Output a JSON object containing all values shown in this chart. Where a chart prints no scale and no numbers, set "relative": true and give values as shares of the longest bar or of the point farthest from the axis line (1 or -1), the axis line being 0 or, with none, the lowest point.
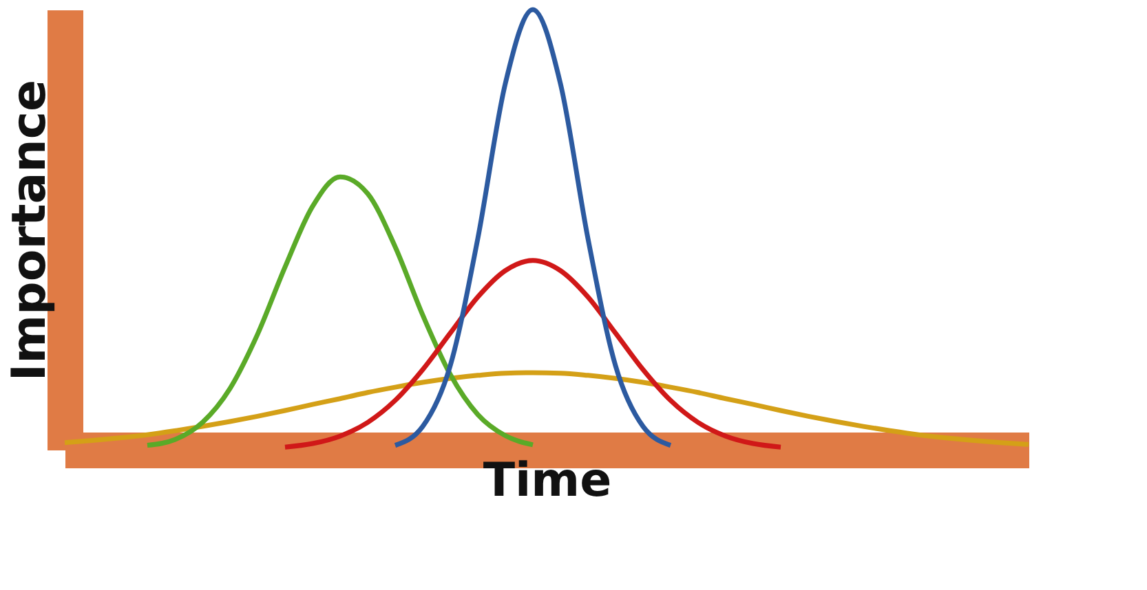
{
  "chart_data": {
    "type": "line",
    "xlabel": "Time",
    "ylabel": "Importance",
    "relative": true,
    "tick_labels": false,
    "categories": [
      null,
      null,
      null,
      null,
      null,
      null,
      null,
      null,
      null,
      null,
      null,
      null,
      null,
      null,
      null,
      null,
      null,
      null,
      null,
      null,
      null,
      null,
      null,
      null,
      null,
      null,
      null,
      null,
      null,
      null,
      null,
      null,
      null,
      null,
      null,
      null
    ],
    "series": [
      {
        "color": "#d4a017",
        "values": [
          0.016,
          0.021,
          0.027,
          0.034,
          0.043,
          0.053,
          0.064,
          0.076,
          0.089,
          0.103,
          0.116,
          0.13,
          0.142,
          0.153,
          0.162,
          0.169,
          0.174,
          0.175,
          0.174,
          0.169,
          0.162,
          0.153,
          0.142,
          0.13,
          0.116,
          0.103,
          0.089,
          0.076,
          0.064,
          0.053,
          0.043,
          0.034,
          0.027,
          0.021,
          0.016,
          0.012
        ]
      },
      {
        "color": "#5aaa28",
        "values": [
          null,
          null,
          null,
          0.01,
          0.023,
          0.062,
          0.139,
          0.262,
          0.415,
          0.553,
          0.62,
          0.582,
          0.461,
          0.306,
          0.171,
          0.08,
          0.032,
          0.011,
          null,
          null,
          null,
          null,
          null,
          null,
          null,
          null,
          null,
          null,
          null,
          null,
          null,
          null,
          null,
          null,
          null,
          null
        ]
      },
      {
        "color": "#d01818",
        "values": [
          null,
          null,
          null,
          null,
          null,
          null,
          null,
          null,
          0.006,
          0.014,
          0.031,
          0.062,
          0.112,
          0.182,
          0.265,
          0.347,
          0.407,
          0.43,
          0.407,
          0.347,
          0.265,
          0.182,
          0.112,
          0.062,
          0.031,
          0.014,
          0.006,
          null,
          null,
          null,
          null,
          null,
          null,
          null,
          null,
          null
        ]
      },
      {
        "color": "#2c5aa0",
        "values": [
          null,
          null,
          null,
          null,
          null,
          null,
          null,
          null,
          null,
          null,
          null,
          null,
          0.01,
          0.053,
          0.191,
          0.48,
          0.832,
          1,
          0.832,
          0.48,
          0.191,
          0.053,
          0.01,
          null,
          null,
          null,
          null,
          null,
          null,
          null,
          null,
          null,
          null,
          null,
          null,
          null
        ]
      }
    ]
  }
}
